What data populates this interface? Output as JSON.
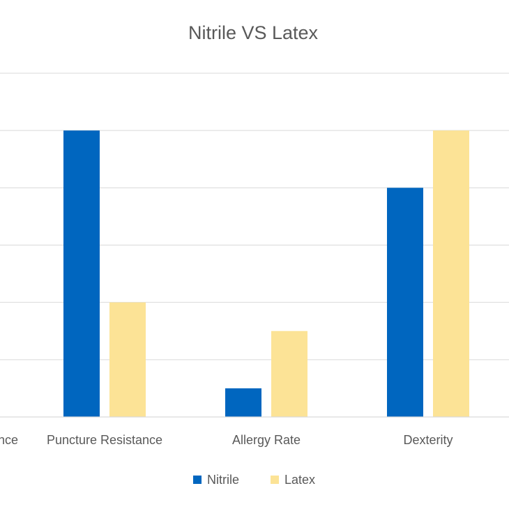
{
  "chart_data": {
    "type": "bar",
    "title": "Nitrile VS Latex",
    "categories": [
      "Chemical Resistance",
      "Puncture Resistance",
      "Allergy Rate",
      "Dexterity"
    ],
    "visible_category_labels": [
      "nce",
      "Puncture Resistance",
      "Allergy Rate",
      "Dexterity"
    ],
    "series": [
      {
        "name": "Nitrile",
        "color": "#0066bf",
        "values": [
          null,
          5,
          0.5,
          4
        ]
      },
      {
        "name": "Latex",
        "color": "#fce396",
        "values": [
          null,
          2,
          1.5,
          5
        ]
      }
    ],
    "ylim": [
      0,
      6
    ],
    "y_tick_step": 1,
    "grid": true,
    "legend_position": "bottom"
  }
}
